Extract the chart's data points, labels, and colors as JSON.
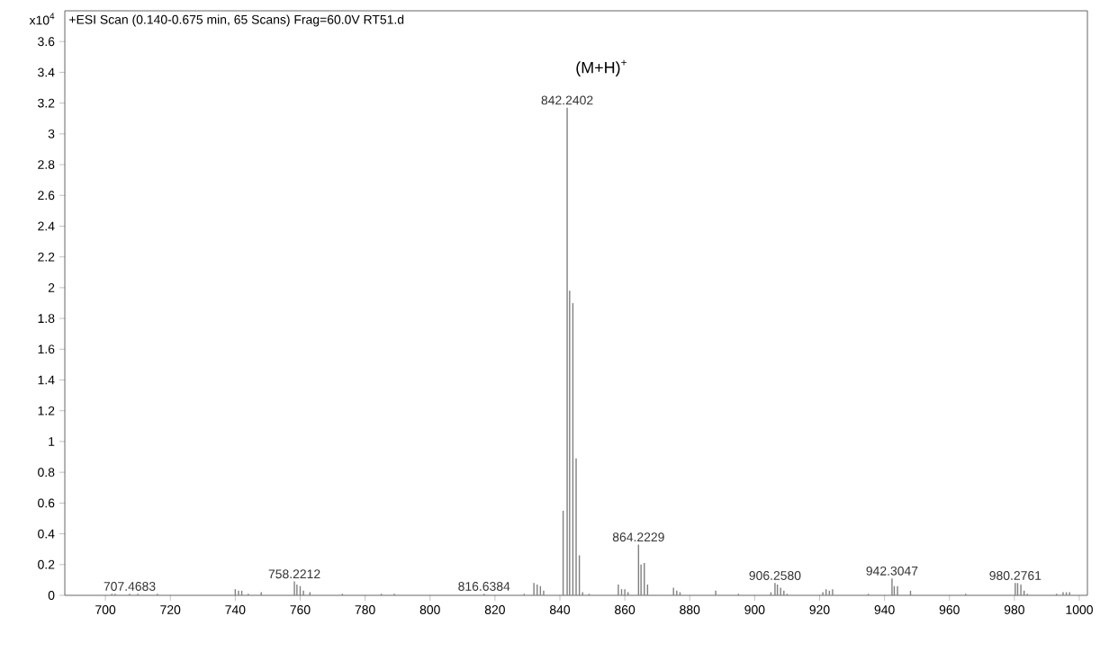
{
  "chart_data": {
    "type": "bar",
    "title": "+ESI Scan (0.140-0.675 min, 65 Scans) Frag=60.0V RT51.d",
    "ylabel": "x10$^{4}$",
    "x": [
      702,
      703,
      707.4683,
      710,
      716,
      740,
      741,
      742,
      744,
      748,
      758.2212,
      759,
      760,
      761,
      763,
      773,
      785,
      789,
      816.6384,
      829,
      832,
      833,
      834,
      835,
      841,
      842.2402,
      843,
      844,
      845,
      846,
      847,
      849,
      858,
      859,
      860,
      861,
      864.2229,
      865,
      866,
      867,
      875,
      876,
      877,
      888,
      895,
      905,
      906.258,
      907,
      908,
      909,
      910,
      921,
      922,
      923,
      924,
      935,
      942.3047,
      943,
      944,
      948,
      965,
      980.2761,
      981,
      982,
      983,
      984,
      993,
      995,
      996,
      997
    ],
    "values": [
      0.01,
      0.01,
      0.01,
      0.01,
      0.01,
      0.04,
      0.03,
      0.03,
      0.01,
      0.02,
      0.09,
      0.07,
      0.06,
      0.03,
      0.02,
      0.01,
      0.01,
      0.01,
      0.01,
      0.01,
      0.08,
      0.07,
      0.06,
      0.03,
      0.55,
      3.17,
      1.98,
      1.9,
      0.89,
      0.26,
      0.02,
      0.01,
      0.07,
      0.04,
      0.04,
      0.02,
      0.33,
      0.2,
      0.21,
      0.07,
      0.05,
      0.03,
      0.02,
      0.03,
      0.01,
      0.02,
      0.08,
      0.07,
      0.05,
      0.03,
      0.01,
      0.02,
      0.04,
      0.03,
      0.04,
      0.01,
      0.11,
      0.06,
      0.06,
      0.03,
      0.01,
      0.08,
      0.08,
      0.07,
      0.03,
      0.01,
      0.01,
      0.02,
      0.02,
      0.02
    ],
    "color": "#808080",
    "xlim": [
      687.5,
      1002.5
    ],
    "ylim": [
      0,
      3.8
    ],
    "xticks": [
      700,
      720,
      740,
      760,
      780,
      800,
      820,
      840,
      860,
      880,
      900,
      920,
      940,
      960,
      980,
      1000
    ],
    "yticks": [
      0,
      0.2,
      0.4,
      0.6,
      0.8,
      1,
      1.2,
      1.4,
      1.6,
      1.8,
      2,
      2.2,
      2.4,
      2.6,
      2.8,
      3,
      3.2,
      3.4,
      3.6
    ],
    "annotations": [
      "(M+H)$^{+}$",
      {
        "text": "707.4683",
        "x": 707.4683,
        "y": 0.01
      },
      {
        "text": "758.2212",
        "x": 758.2212,
        "y": 0.09
      },
      {
        "text": "816.6384",
        "x": 816.6384,
        "y": 0.01
      },
      {
        "text": "842.2402",
        "x": 842.2402,
        "y": 3.17
      },
      {
        "text": "864.2229",
        "x": 864.2229,
        "y": 0.33
      },
      {
        "text": "906.2580",
        "x": 906.258,
        "y": 0.08
      },
      {
        "text": "942.3047",
        "x": 942.3047,
        "y": 0.11
      },
      {
        "text": "980.2761",
        "x": 980.2761,
        "y": 0.08
      }
    ]
  }
}
